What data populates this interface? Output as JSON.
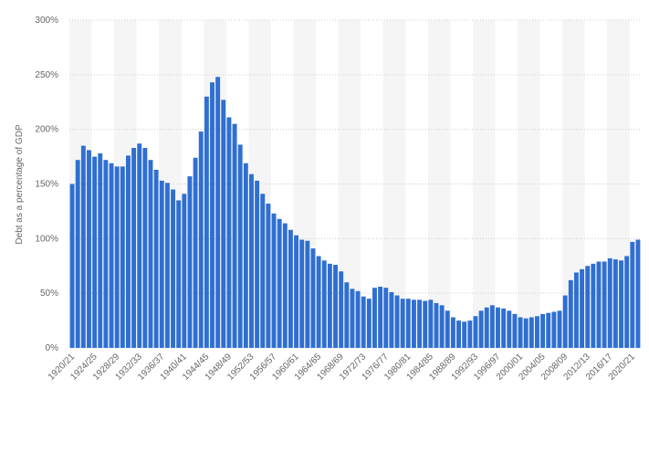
{
  "chart_data": {
    "type": "bar",
    "y_label": "Debt as a percentage of GDP",
    "categories": [
      "1920/21",
      null,
      null,
      null,
      "1924/25",
      null,
      null,
      null,
      "1928/29",
      null,
      null,
      null,
      "1932/33",
      null,
      null,
      null,
      "1936/37",
      null,
      null,
      null,
      "1940/41",
      null,
      null,
      null,
      "1944/45",
      null,
      null,
      null,
      "1948/49",
      null,
      null,
      null,
      "1952/53",
      null,
      null,
      null,
      "1956/57",
      null,
      null,
      null,
      "1960/61",
      null,
      null,
      null,
      "1964/65",
      null,
      null,
      null,
      "1968/69",
      null,
      null,
      null,
      "1972/73",
      null,
      null,
      null,
      "1976/77",
      null,
      null,
      null,
      "1980/81",
      null,
      null,
      null,
      "1984/85",
      null,
      null,
      null,
      "1988/89",
      null,
      null,
      null,
      "1992/93",
      null,
      null,
      null,
      "1996/97",
      null,
      null,
      null,
      "2000/01",
      null,
      null,
      null,
      "2004/05",
      null,
      null,
      null,
      "2008/09",
      null,
      null,
      null,
      "2012/13",
      null,
      null,
      null,
      "2016/17",
      null,
      null,
      null,
      "2020/21",
      null
    ],
    "values": [
      150,
      172,
      185,
      181,
      175,
      178,
      172,
      169,
      166,
      166,
      176,
      183,
      187,
      183,
      172,
      163,
      153,
      151,
      145,
      135,
      141,
      157,
      174,
      198,
      230,
      243,
      248,
      227,
      211,
      205,
      186,
      169,
      159,
      153,
      141,
      132,
      123,
      118,
      114,
      108,
      103,
      99,
      98,
      91,
      84,
      80,
      77,
      76,
      70,
      60,
      54,
      52,
      47,
      45,
      55,
      56,
      55,
      51,
      48,
      45,
      45,
      44,
      44,
      43,
      44,
      41,
      39,
      34,
      28,
      25,
      24,
      25,
      29,
      34,
      37,
      39,
      37,
      36,
      34,
      31,
      28,
      27,
      28,
      29,
      31,
      32,
      33,
      34,
      48,
      62,
      69,
      72,
      75,
      77,
      79,
      79,
      82,
      81,
      80,
      84,
      97,
      99
    ],
    "color": "#2f6fd1",
    "ylim": [
      0,
      300
    ],
    "yticks": [
      {
        "value": 0,
        "label": "0%"
      },
      {
        "value": 50,
        "label": "50%"
      },
      {
        "value": 100,
        "label": "100%"
      },
      {
        "value": 150,
        "label": "150%"
      },
      {
        "value": 200,
        "label": "200%"
      },
      {
        "value": 250,
        "label": "250%"
      },
      {
        "value": 300,
        "label": "300%"
      }
    ],
    "grid": true
  }
}
